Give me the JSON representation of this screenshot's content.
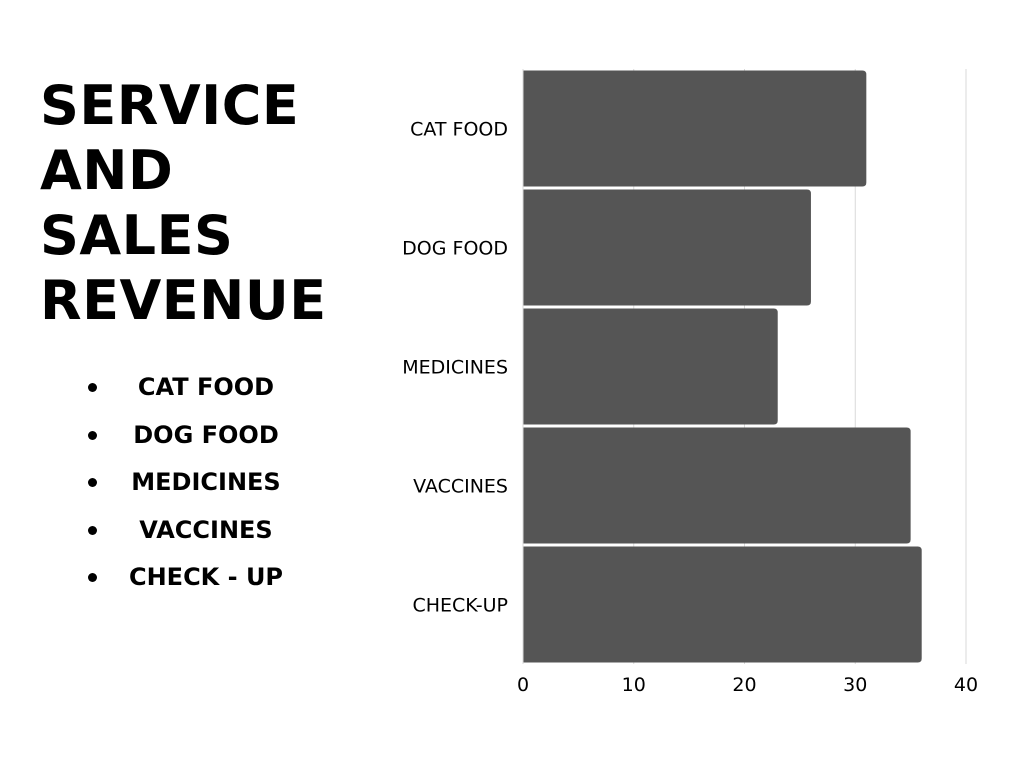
{
  "title_lines": [
    "SERVICE",
    "AND",
    "SALES",
    "REVENUE"
  ],
  "list_items": [
    "CAT FOOD",
    "DOG FOOD",
    "MEDICINES",
    "VACCINES",
    "CHECK - UP"
  ],
  "colors": {
    "bar": "#555555",
    "grid": "#d9d9d9",
    "text": "#000000",
    "background": "#ffffff"
  },
  "chart_data": {
    "type": "bar",
    "orientation": "horizontal",
    "categories": [
      "CAT FOOD",
      "DOG FOOD",
      "MEDICINES",
      "VACCINES",
      "CHECK-UP"
    ],
    "values": [
      31,
      26,
      23,
      35,
      36
    ],
    "xlim": [
      0,
      40
    ],
    "xticks": [
      0,
      10,
      20,
      30,
      40
    ],
    "grid": true
  }
}
